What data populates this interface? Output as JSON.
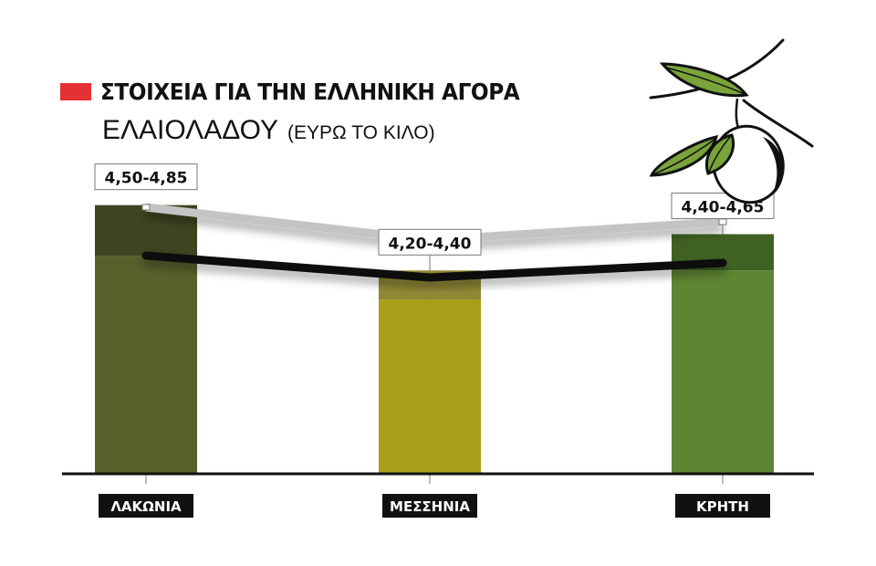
{
  "header": {
    "title": "ΣΤΟΙΧΕΙΑ ΓΙΑ ΤΗΝ ΕΛΛΗΝΙΚΗ ΑΓΟΡΑ",
    "subtitle": "ΕΛΑΙΟΛΑΔΟΥ",
    "unit": "(ΕΥΡΩ ΤΟ ΚΙΛΟ)"
  },
  "colors": {
    "title_marker": "#e53035",
    "baseline": "#111111",
    "high_line": "#c4c4c4",
    "low_line": "#111111",
    "leaf": "#7aa33a"
  },
  "icon": "olive-branch-icon",
  "chart_data": {
    "type": "bar",
    "title": "ΣΤΟΙΧΕΙΑ ΓΙΑ ΤΗΝ ΕΛΛΗΝΙΚΗ ΑΓΟΡΑ",
    "subtitle": "ΕΛΑΙΟΛΑΔΟΥ (ΕΥΡΩ ΤΟ ΚΙΛΟ)",
    "categories": [
      "ΛΑΚΩΝΙΑ",
      "ΜΕΣΣΗΝΙΑ",
      "ΚΡΗΤΗ"
    ],
    "range_labels": [
      "4,50-4,85",
      "4,20-4,40",
      "4,40-4,65"
    ],
    "low": [
      4.5,
      4.2,
      4.4
    ],
    "high": [
      4.85,
      4.4,
      4.65
    ],
    "bar_colors": [
      {
        "base": "#58602c",
        "top": "#3d4420"
      },
      {
        "base": "#a79f17",
        "top": "#8e8735"
      },
      {
        "base": "#5e8532",
        "top": "#3f6223"
      }
    ],
    "value_axis": [
      3.0,
      5.2
    ],
    "legend": "none",
    "grid": false
  }
}
